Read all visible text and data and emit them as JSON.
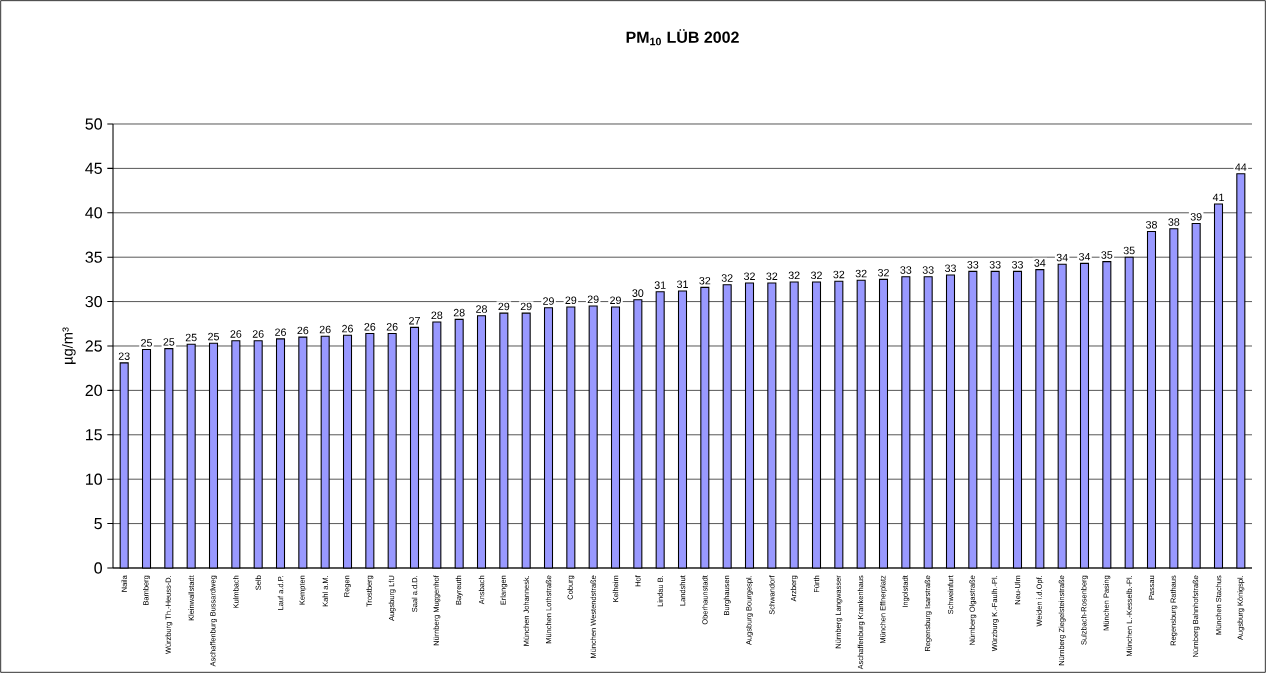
{
  "chart_data": {
    "type": "bar",
    "title": "PM$_{10}$ LÜB 2002",
    "ylabel": "µg/m³",
    "categories": [
      "Naila",
      "Bamberg",
      "Würzburg Th.-Heuss-D.",
      "Kleinwallstadt",
      "Aschaffenburg Bussardweg",
      "Kulmbach",
      "Selb",
      "Lauf a.d.P.",
      "Kempten",
      "Kahl a.M.",
      "Regen",
      "Trostberg",
      "Augsburg LfU",
      "Saal a.d.D.",
      "Nürnberg Muggenhof",
      "Bayreuth",
      "Ansbach",
      "Erlangen",
      "München Johannesk.",
      "München Lothstraße",
      "Coburg",
      "München Westendstraße",
      "Kelheim",
      "Hof",
      "Lindau B.",
      "Landshut",
      "Oberhaunstadt",
      "Burghausen",
      "Augsburg Bourgespl.",
      "Schwandorf",
      "Arzberg",
      "Fürth",
      "Nürnberg Langwasser",
      "Aschaffenburg Krankenhaus",
      "München Effnerplatz",
      "Ingolstadt",
      "Regensburg Isarstraße",
      "Schweinfurt",
      "Nürnberg Olgastraße",
      "Würzburg K.-Faulh.-Pl.",
      "Neu-Ulm",
      "Weiden i.d.Opf.",
      "Nürnberg Ziegelsteinstraße",
      "Sulzbach-Rosenberg",
      "München Pasing",
      "München L.-Kesselb.-Pl.",
      "Passau",
      "Regensburg Rathaus",
      "Nürnberg Bahnhofstraße",
      "München Stachus",
      "Augsburg Königspl."
    ],
    "values": [
      23.1,
      24.6,
      24.7,
      25.2,
      25.3,
      25.6,
      25.6,
      25.8,
      26.0,
      26.1,
      26.2,
      26.4,
      26.4,
      27.1,
      27.7,
      28.0,
      28.4,
      28.7,
      28.7,
      29.3,
      29.4,
      29.5,
      29.4,
      30.2,
      31.1,
      31.2,
      31.6,
      31.9,
      32.1,
      32.1,
      32.2,
      32.2,
      32.3,
      32.4,
      32.5,
      32.8,
      32.8,
      33.0,
      33.4,
      33.4,
      33.4,
      33.6,
      34.2,
      34.3,
      34.5,
      35.0,
      37.9,
      38.2,
      38.8,
      41.0,
      44.4
    ],
    "value_labels": [
      "23",
      "25",
      "25",
      "25",
      "25",
      "26",
      "26",
      "26",
      "26",
      "26",
      "26",
      "26",
      "26",
      "27",
      "28",
      "28",
      "28",
      "29",
      "29",
      "29",
      "29",
      "29",
      "29",
      "30",
      "31",
      "31",
      "32",
      "32",
      "32",
      "32",
      "32",
      "32",
      "32",
      "32",
      "32",
      "33",
      "33",
      "33",
      "33",
      "33",
      "33",
      "34",
      "34",
      "34",
      "35",
      "35",
      "38",
      "38",
      "39",
      "41",
      "44"
    ],
    "color": "#9999ff",
    "ylim": [
      0,
      50
    ],
    "yticks": [
      0,
      5,
      10,
      15,
      20,
      25,
      30,
      35,
      40,
      45,
      50
    ],
    "grid": "y"
  }
}
